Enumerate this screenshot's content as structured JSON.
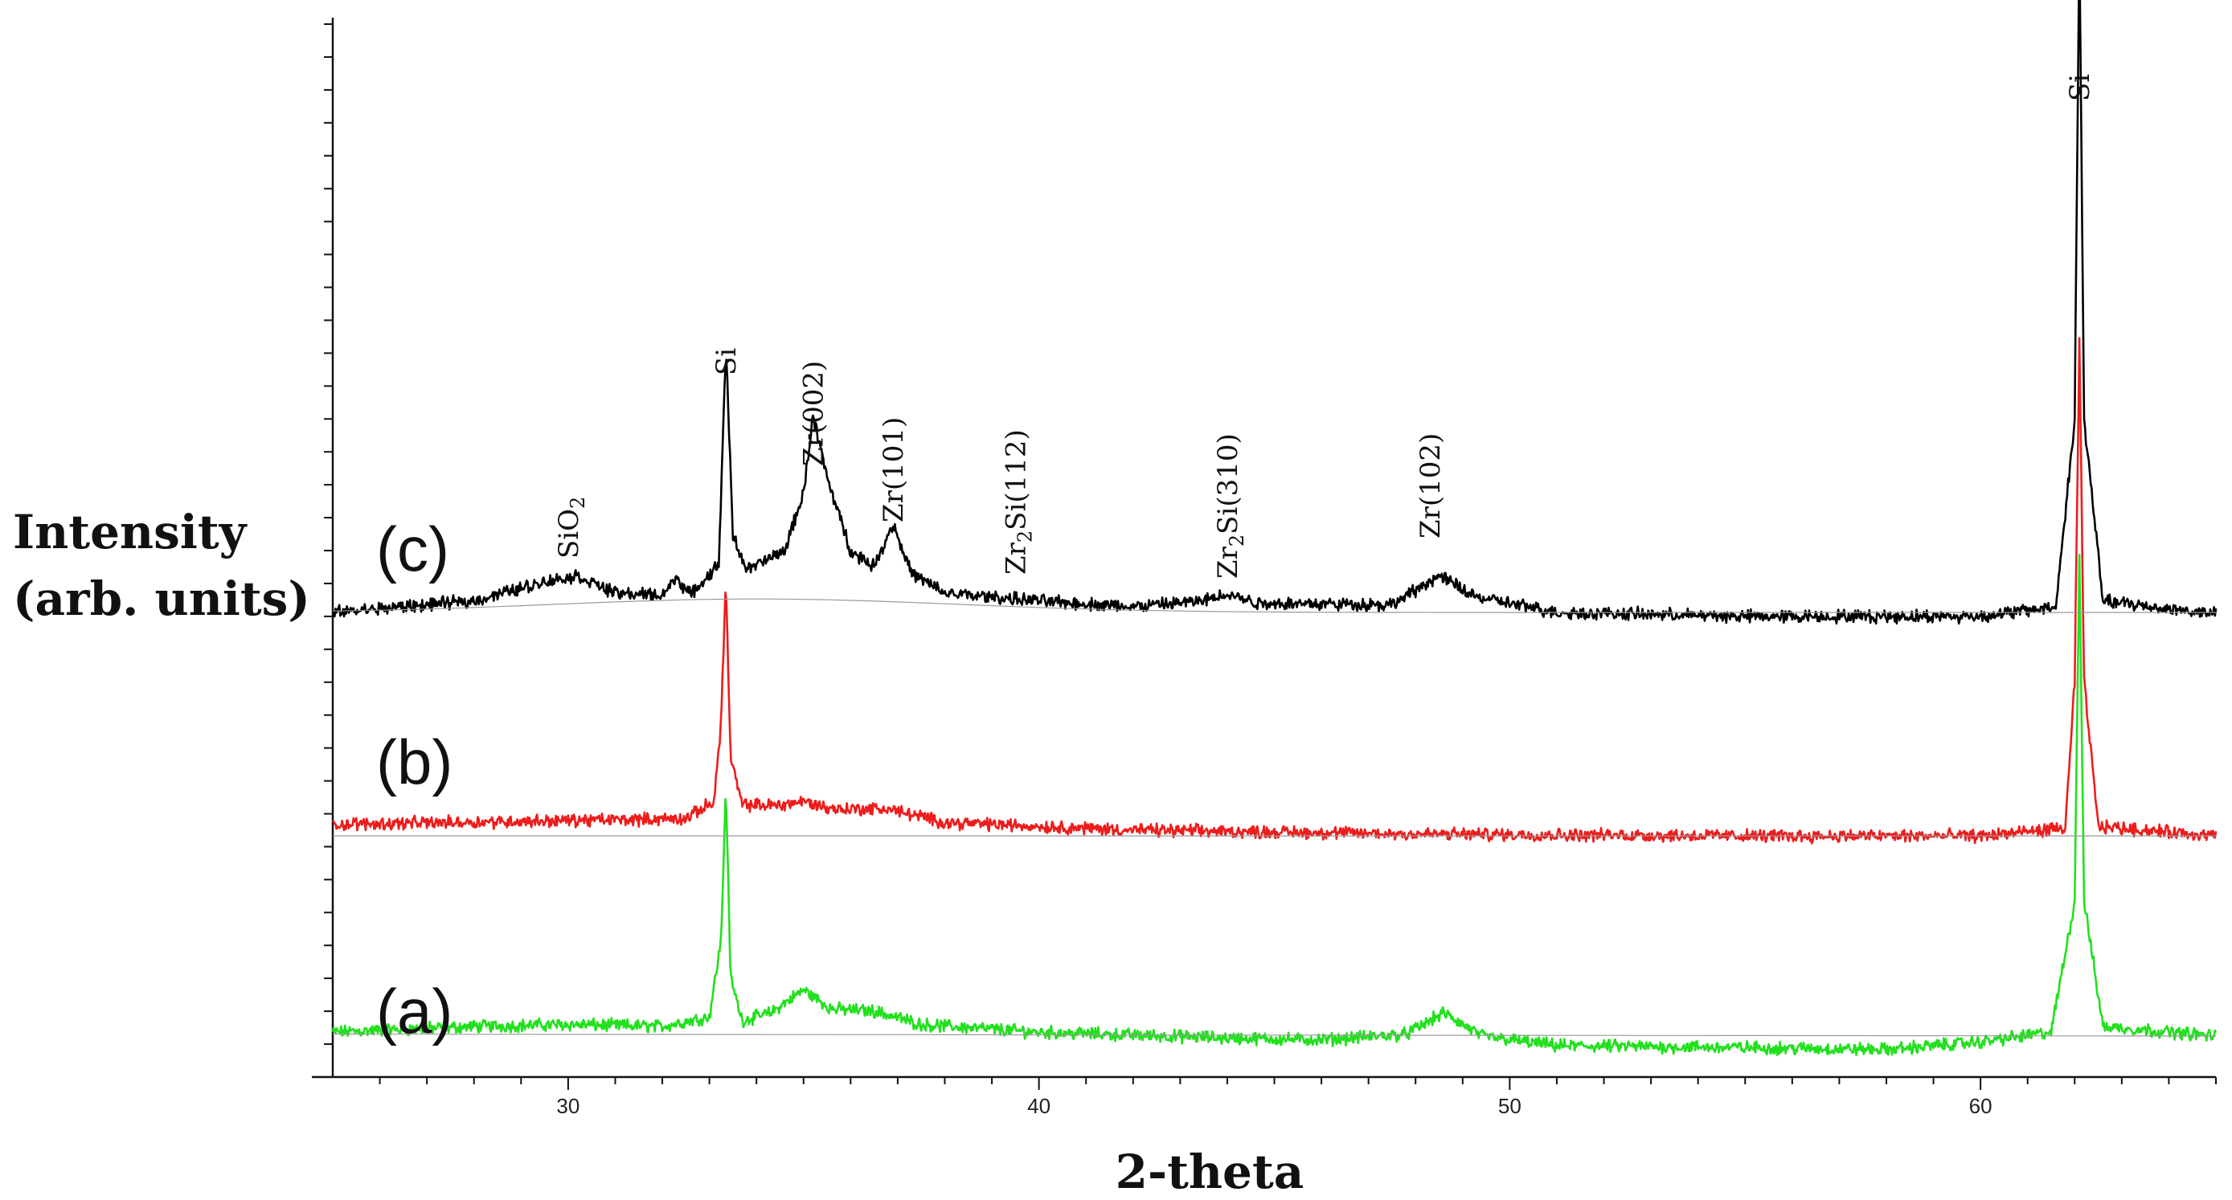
{
  "chart_data": {
    "type": "line",
    "xlabel": "2-theta",
    "ylabel": [
      "Intensity",
      "(arb. units)"
    ],
    "xlim": [
      25,
      65
    ],
    "x_ticks": [
      30,
      40,
      50,
      60
    ],
    "y_ticks_count": 32,
    "grid": false,
    "series": [
      {
        "name": "(a)",
        "color": "#22e01e",
        "baseline_range": [
          1.1,
          1.0
        ],
        "offset": 0,
        "points": [
          [
            25,
            1.2
          ],
          [
            28,
            1.5
          ],
          [
            30,
            1.6
          ],
          [
            32,
            1.5
          ],
          [
            33.0,
            2.0
          ],
          [
            33.25,
            6.0
          ],
          [
            33.35,
            14.0
          ],
          [
            33.45,
            4.0
          ],
          [
            33.7,
            1.8
          ],
          [
            34.3,
            2.2
          ],
          [
            35.0,
            3.4
          ],
          [
            35.6,
            2.4
          ],
          [
            36.5,
            2.3
          ],
          [
            37.5,
            1.6
          ],
          [
            40,
            1.2
          ],
          [
            44,
            0.9
          ],
          [
            46,
            0.8
          ],
          [
            47.8,
            1.1
          ],
          [
            48.6,
            2.2
          ],
          [
            49.4,
            1.0
          ],
          [
            51,
            0.5
          ],
          [
            55,
            0.4
          ],
          [
            58,
            0.3
          ],
          [
            60,
            0.7
          ],
          [
            61.5,
            1.2
          ],
          [
            62.0,
            8.0
          ],
          [
            62.1,
            26.0
          ],
          [
            62.2,
            8.0
          ],
          [
            62.6,
            1.5
          ],
          [
            65,
            1.0
          ]
        ]
      },
      {
        "name": "(b)",
        "color": "#ee1c1c",
        "baseline_range": [
          0.0,
          0.0
        ],
        "offset": 0,
        "points": [
          [
            25,
            0.6
          ],
          [
            30,
            0.8
          ],
          [
            32.5,
            0.9
          ],
          [
            33.1,
            1.8
          ],
          [
            33.25,
            6.0
          ],
          [
            33.35,
            13.3
          ],
          [
            33.45,
            4.0
          ],
          [
            33.7,
            1.6
          ],
          [
            34.5,
            1.6
          ],
          [
            35.0,
            1.8
          ],
          [
            35.6,
            1.4
          ],
          [
            36.8,
            1.4
          ],
          [
            38,
            0.7
          ],
          [
            42,
            0.3
          ],
          [
            48,
            0.1
          ],
          [
            55,
            0.0
          ],
          [
            60,
            0.0
          ],
          [
            61.8,
            0.4
          ],
          [
            62.0,
            8.0
          ],
          [
            62.1,
            25.6
          ],
          [
            62.2,
            8.0
          ],
          [
            62.5,
            0.5
          ],
          [
            65,
            0.0
          ]
        ]
      },
      {
        "name": "(c)",
        "color": "#000000",
        "baseline_range": [
          0.0,
          0.0
        ],
        "offset": 0,
        "points": [
          [
            25,
            0.0
          ],
          [
            28,
            0.6
          ],
          [
            29.5,
            1.6
          ],
          [
            30.2,
            1.9
          ],
          [
            31.0,
            1.0
          ],
          [
            32.0,
            0.9
          ],
          [
            32.3,
            1.8
          ],
          [
            32.6,
            0.9
          ],
          [
            33.2,
            2.5
          ],
          [
            33.35,
            13.8
          ],
          [
            33.5,
            4.0
          ],
          [
            33.8,
            2.2
          ],
          [
            34.6,
            3.2
          ],
          [
            35.0,
            6.2
          ],
          [
            35.2,
            10.2
          ],
          [
            35.5,
            7.0
          ],
          [
            36.0,
            3.2
          ],
          [
            36.5,
            2.4
          ],
          [
            36.9,
            4.6
          ],
          [
            37.3,
            2.0
          ],
          [
            38,
            1.0
          ],
          [
            40,
            0.6
          ],
          [
            42,
            0.3
          ],
          [
            43.5,
            0.6
          ],
          [
            44.0,
            1.0
          ],
          [
            44.6,
            0.5
          ],
          [
            47.5,
            0.4
          ],
          [
            48.5,
            1.9
          ],
          [
            49.3,
            0.8
          ],
          [
            51,
            0.0
          ],
          [
            55,
            -0.2
          ],
          [
            60,
            -0.2
          ],
          [
            61.6,
            0.3
          ],
          [
            62.0,
            10.0
          ],
          [
            62.1,
            34.9
          ],
          [
            62.2,
            10.0
          ],
          [
            62.6,
            0.6
          ],
          [
            65,
            -0.1
          ]
        ]
      }
    ],
    "series_labels": [
      "(a)",
      "(b)",
      "(c)"
    ],
    "annotations": [
      {
        "label": "SiO",
        "sub": "2",
        "tail": "",
        "x": 30.0
      },
      {
        "label": "Si",
        "sub": "",
        "tail": "",
        "x": 33.35
      },
      {
        "label": "Zr(002)",
        "sub": "",
        "tail": "",
        "x": 35.2
      },
      {
        "label": "Zr(101)",
        "sub": "",
        "tail": "",
        "x": 36.9
      },
      {
        "label": "Zr",
        "sub": "2",
        "tail": "Si(112)",
        "x": 39.5
      },
      {
        "label": "Zr",
        "sub": "2",
        "tail": "Si(310)",
        "x": 44.0
      },
      {
        "label": "Zr(102)",
        "sub": "",
        "tail": "",
        "x": 48.3
      },
      {
        "label": "Si",
        "sub": "",
        "tail": "",
        "x": 62.1
      }
    ]
  }
}
